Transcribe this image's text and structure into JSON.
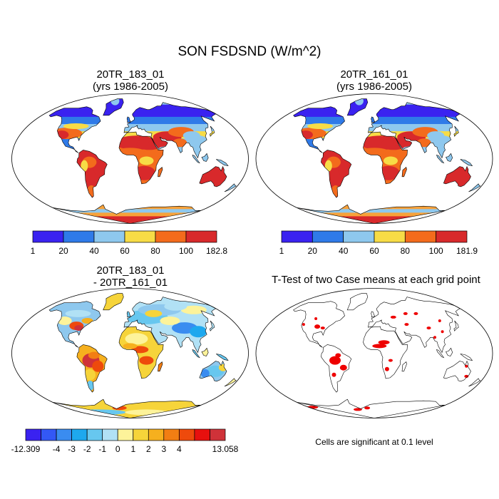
{
  "main_title": "SON FSDSND (W/m^2)",
  "panels": [
    {
      "title_line1": "20TR_183_01",
      "title_line2": "(yrs 1986-2005)"
    },
    {
      "title_line1": "20TR_161_01",
      "title_line2": "(yrs 1986-2005)"
    },
    {
      "title_line1": "20TR_183_01",
      "title_line2": "- 20TR_161_01"
    },
    {
      "title_line1": "T-Test of two Case means at each grid point",
      "title_line2": ""
    }
  ],
  "colorbars": {
    "abs1": {
      "colors": [
        "#3a22f0",
        "#2f7ae8",
        "#8ec8ee",
        "#f7dc46",
        "#f36b1c",
        "#d8292b"
      ],
      "labels": [
        "1",
        "20",
        "40",
        "60",
        "80",
        "100",
        "182.8"
      ]
    },
    "abs2": {
      "colors": [
        "#3a22f0",
        "#2f7ae8",
        "#8ec8ee",
        "#f7dc46",
        "#f36b1c",
        "#d8292b"
      ],
      "labels": [
        "1",
        "20",
        "40",
        "60",
        "80",
        "100",
        "181.9"
      ]
    },
    "diff": {
      "colors": [
        "#3a22f0",
        "#3358f5",
        "#3a8cf0",
        "#1ea8ee",
        "#67c7ef",
        "#b1e1f5",
        "#fdf39a",
        "#f6d43a",
        "#f6b01e",
        "#f27e13",
        "#ee4a0c",
        "#e8100e",
        "#cf3239"
      ],
      "labels": [
        "-12.309",
        "-4",
        "-3",
        "-2",
        "-1",
        "0",
        "1",
        "2",
        "3",
        "4",
        "13.058"
      ]
    }
  },
  "significance_note": "Cells are significant at 0.1 level",
  "significance_color": "#ee0000"
}
